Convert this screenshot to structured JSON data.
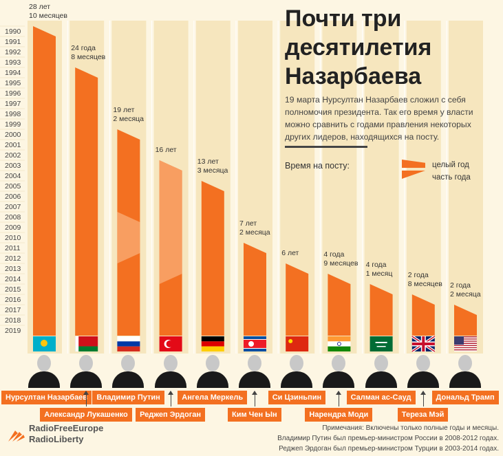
{
  "title_lines": [
    "Почти три",
    "десятилетия",
    "Назарбаева"
  ],
  "description": "19 марта Нурсултан Назарбаев сложил с себя полномочия президента. Так его время у власти можно сравнить с годами правления некоторых других лидеров, находящихся на посту.",
  "legend": {
    "title": "Время на посту:",
    "full_year": "целый год",
    "partial_year": "часть года"
  },
  "colors": {
    "bar": "#f37021",
    "bar_light": "#f8a66c",
    "band": "#f6e6be",
    "background": "#fdf6e3"
  },
  "chart_data": {
    "type": "bar",
    "y_axis": {
      "range": [
        1990,
        2019
      ],
      "ticks": [
        "1990",
        "1991",
        "1992",
        "1993",
        "1994",
        "1995",
        "1996",
        "1997",
        "1998",
        "1999",
        "2000",
        "2001",
        "2002",
        "2003",
        "2004",
        "2005",
        "2006",
        "2007",
        "2008",
        "2009",
        "2010",
        "2011",
        "2012",
        "2013",
        "2014",
        "2015",
        "2016",
        "2017",
        "2018",
        "2019"
      ]
    },
    "categories": [
      "Нурсултан Назарбаев",
      "Александр Лукашенко",
      "Владимир Путин",
      "Реджеп Эрдоган",
      "Ангела Меркель",
      "Ким Чен Ын",
      "Си Цзиньпин",
      "Нарендра Моди",
      "Салман ас-Сауд",
      "Тереза Мэй",
      "Дональд Трамп"
    ],
    "series": [
      {
        "values_years": [
          28.83,
          24.67,
          19.17,
          16,
          13.25,
          7.17,
          6,
          4.75,
          4.08,
          2.67,
          2.17
        ]
      }
    ],
    "duration_labels": [
      [
        "28 лет",
        "10 месяцев"
      ],
      [
        "24 года",
        "8 месяцев"
      ],
      [
        "19 лет",
        "2 месяца"
      ],
      [
        "16 лет"
      ],
      [
        "13 лет",
        "3 месяца"
      ],
      [
        "7 лет",
        "2 месяца"
      ],
      [
        "6 лет"
      ],
      [
        "4 года",
        "9 месяцев"
      ],
      [
        "4 года",
        "1 месяц"
      ],
      [
        "2 года",
        "8 месяцев"
      ],
      [
        "2 года",
        "2 месяца"
      ]
    ],
    "start_years": [
      1990,
      1994,
      2000,
      2003,
      2005,
      2011,
      2013,
      2014,
      2015,
      2016,
      2017
    ],
    "partial_year_segments": [
      {
        "leader_index": 2,
        "from_year": 2008,
        "to_year": 2012,
        "role": "премьер-министр"
      },
      {
        "leader_index": 3,
        "from_year": 2003,
        "to_year": 2014,
        "role": "премьер-министр"
      }
    ],
    "flags": [
      "kz-flag",
      "by-flag",
      "ru-flag",
      "tr-flag",
      "de-flag",
      "kp-flag",
      "cn-flag",
      "in-flag",
      "sa-flag",
      "gb-flag",
      "us-flag"
    ]
  },
  "leaders": [
    {
      "name": "Нурсултан Назарбаев"
    },
    {
      "name": "Александр Лукашенко"
    },
    {
      "name": "Владимир Путин"
    },
    {
      "name": "Реджеп Эрдоган"
    },
    {
      "name": "Ангела Меркель"
    },
    {
      "name": "Ким Чен Ын"
    },
    {
      "name": "Си Цзиньпин"
    },
    {
      "name": "Нарендра Моди"
    },
    {
      "name": "Салман ас-Сауд"
    },
    {
      "name": "Тереза Мэй"
    },
    {
      "name": "Дональд Трамп"
    }
  ],
  "notes": [
    "Примечания: Включены только полные годы и месяцы.",
    "Владимир Путин был премьер-министром России в  2008-2012 годах.",
    "Реджеп Эрдоган был премьер-министром Турции в 2003-2014 годах."
  ],
  "logo": {
    "line1": "RadioFreeEurope",
    "line2": "RadioLiberty"
  }
}
